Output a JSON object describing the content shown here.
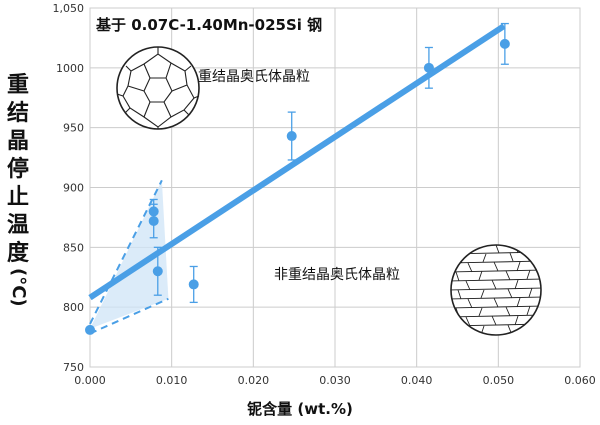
{
  "chart_data": {
    "type": "scatter",
    "title": "基于 0.07C-1.40Mn-025Si 钢",
    "xlabel": "铌含量 (wt.%)",
    "ylabel": "重结晶停止温度 (°C)",
    "xlim": [
      0,
      0.06
    ],
    "ylim": [
      750,
      1050
    ],
    "x_ticks": [
      "0.000",
      "0.010",
      "0.020",
      "0.030",
      "0.040",
      "0.050",
      "0.060"
    ],
    "y_ticks": [
      "750",
      "800",
      "850",
      "900",
      "950",
      "1000",
      "1,050"
    ],
    "grid": true,
    "points": [
      {
        "x": 0.0,
        "y": 781,
        "err": 0
      },
      {
        "x": 0.0078,
        "y": 880,
        "err": 10
      },
      {
        "x": 0.0078,
        "y": 872,
        "err": 14
      },
      {
        "x": 0.0083,
        "y": 830,
        "err": 20
      },
      {
        "x": 0.0127,
        "y": 819,
        "err": 15
      },
      {
        "x": 0.0247,
        "y": 943,
        "err": 20
      },
      {
        "x": 0.0415,
        "y": 1000,
        "err": 17
      },
      {
        "x": 0.0508,
        "y": 1020,
        "err": 17
      }
    ],
    "trendline": {
      "x": [
        0.0,
        0.0507
      ],
      "y": [
        808,
        1035
      ]
    },
    "dashed_lines": [
      {
        "x": [
          0.0,
          0.0088
        ],
        "y": [
          786,
          906
        ]
      },
      {
        "x": [
          0.0,
          0.0096
        ],
        "y": [
          778,
          807
        ]
      }
    ],
    "shaded_region": {
      "x": [
        0.0,
        0.0088,
        0.0096
      ],
      "y": [
        782,
        906,
        807
      ]
    },
    "annotations": [
      "重结晶奥氏体晶粒",
      "非重结晶奥氏体晶粒"
    ],
    "colors": {
      "series": "#4a9fe6",
      "shade": "#cfe4f7",
      "grid": "#cccccc"
    }
  }
}
